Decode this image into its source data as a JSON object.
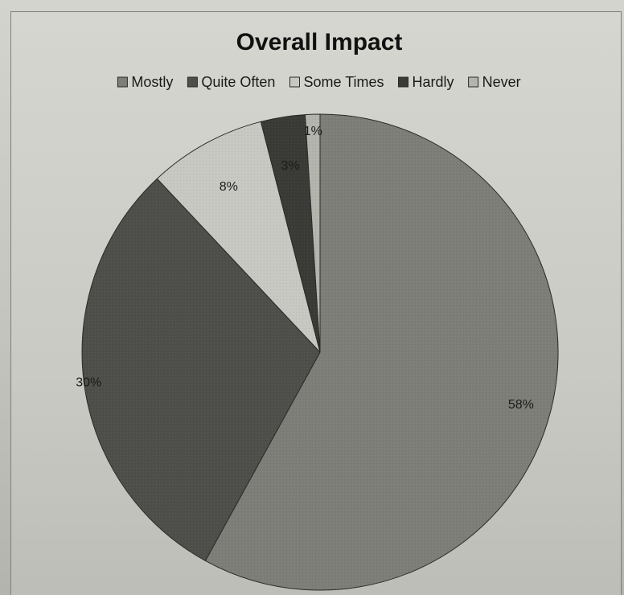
{
  "chart_data": {
    "type": "pie",
    "title": "Overall Impact",
    "legend_position": "top",
    "categories": [
      "Mostly",
      "Quite Often",
      "Some Times",
      "Hardly",
      "Never"
    ],
    "values": [
      58,
      30,
      8,
      3,
      1
    ],
    "labels": [
      "58%",
      "30%",
      "8%",
      "3%",
      "1%"
    ],
    "colors": [
      "#7e7e78",
      "#4e4e4a",
      "#c8c8c2",
      "#3a3a36",
      "#b4b4ae"
    ],
    "label_light": [
      false,
      false,
      false,
      false,
      false
    ]
  }
}
